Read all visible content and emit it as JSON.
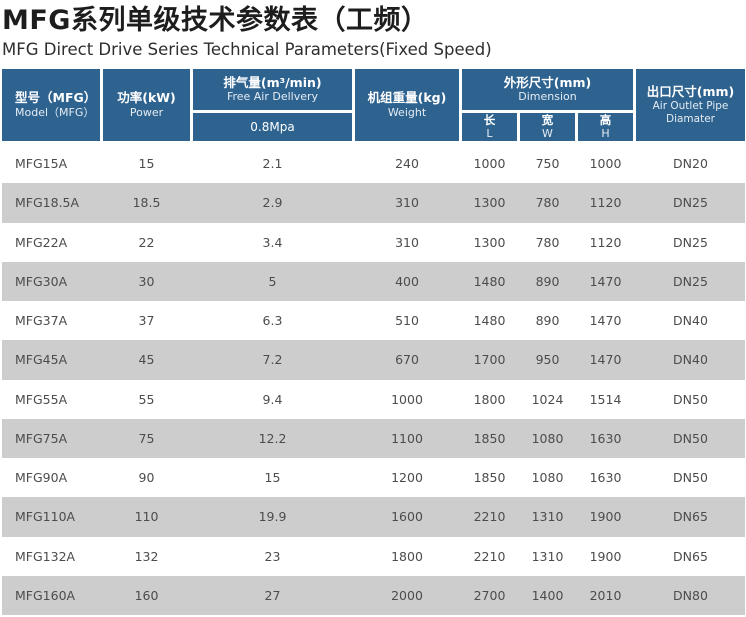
{
  "page": {
    "title": "MFG系列单级技术参数表（工频）",
    "subtitle": "MFG Direct Drive Series Technical Parameters(Fixed Speed)"
  },
  "colors": {
    "header_bg": "#2e6390",
    "header_text": "#ffffff",
    "row_bg": "#ffffff",
    "row_alt_bg": "#cdcdcd",
    "cell_text": "#4c4c4c"
  },
  "table": {
    "header": {
      "model": {
        "zh": "型号（MFG）",
        "en": "Model（MFG）"
      },
      "power": {
        "zh": "功率(kW)",
        "en": "Power"
      },
      "fad": {
        "zh": "排气量(m³/min)",
        "en": "Free Air Dellvery",
        "sub": "0.8Mpa"
      },
      "weight": {
        "zh": "机组重量(kg)",
        "en": "Weight"
      },
      "dimension": {
        "zh": "外形尺寸(mm)",
        "en": "Dimension",
        "sub": [
          {
            "zh": "长",
            "en": "L"
          },
          {
            "zh": "宽",
            "en": "W"
          },
          {
            "zh": "高",
            "en": "H"
          }
        ]
      },
      "outlet": {
        "zh": "出口尺寸(mm)",
        "en": "Air Outlet Pipe Diamater"
      }
    },
    "rows": [
      [
        "MFG15A",
        "15",
        "2.1",
        "240",
        "1000",
        "750",
        "1000",
        "DN20"
      ],
      [
        "MFG18.5A",
        "18.5",
        "2.9",
        "310",
        "1300",
        "780",
        "1120",
        "DN25"
      ],
      [
        "MFG22A",
        "22",
        "3.4",
        "310",
        "1300",
        "780",
        "1120",
        "DN25"
      ],
      [
        "MFG30A",
        "30",
        "5",
        "400",
        "1480",
        "890",
        "1470",
        "DN25"
      ],
      [
        "MFG37A",
        "37",
        "6.3",
        "510",
        "1480",
        "890",
        "1470",
        "DN40"
      ],
      [
        "MFG45A",
        "45",
        "7.2",
        "670",
        "1700",
        "950",
        "1470",
        "DN40"
      ],
      [
        "MFG55A",
        "55",
        "9.4",
        "1000",
        "1800",
        "1024",
        "1514",
        "DN50"
      ],
      [
        "MFG75A",
        "75",
        "12.2",
        "1100",
        "1850",
        "1080",
        "1630",
        "DN50"
      ],
      [
        "MFG90A",
        "90",
        "15",
        "1200",
        "1850",
        "1080",
        "1630",
        "DN50"
      ],
      [
        "MFG110A",
        "110",
        "19.9",
        "1600",
        "2210",
        "1310",
        "1900",
        "DN65"
      ],
      [
        "MFG132A",
        "132",
        "23",
        "1800",
        "2210",
        "1310",
        "1900",
        "DN65"
      ],
      [
        "MFG160A",
        "160",
        "27",
        "2000",
        "2700",
        "1400",
        "2010",
        "DN80"
      ]
    ]
  }
}
